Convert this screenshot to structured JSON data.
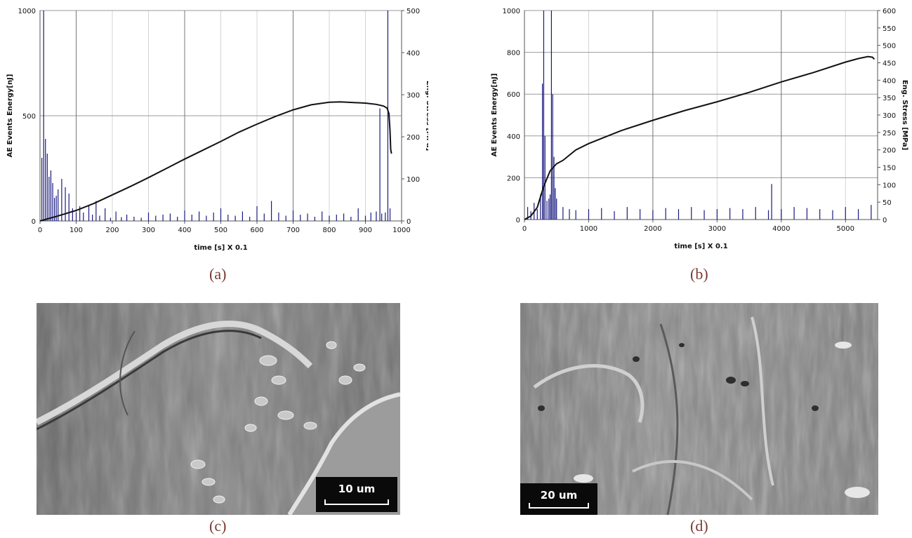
{
  "chart_data": [
    {
      "panel": "(a)",
      "type": "line",
      "xlabel": "time [s] X 0.1",
      "ylabel": "AE Events Energy[nJ]",
      "y2label": "Eng. Stress [MPa]",
      "xlim": [
        0,
        1000
      ],
      "ylim": [
        0,
        1000
      ],
      "y2lim": [
        0,
        500
      ],
      "xticks": [
        0,
        100,
        200,
        300,
        400,
        500,
        600,
        700,
        800,
        900,
        1000
      ],
      "yticks": [
        0,
        500,
        1000
      ],
      "y2ticks": [
        0,
        100,
        200,
        300,
        400,
        500
      ],
      "major_gridlines_x": [
        100,
        400,
        700
      ],
      "grid": true,
      "series": [
        {
          "axis": "right",
          "color": "#111111",
          "x": [
            0,
            50,
            100,
            150,
            200,
            250,
            300,
            350,
            400,
            450,
            500,
            550,
            600,
            650,
            700,
            750,
            800,
            830,
            850,
            900,
            930,
            950,
            960,
            965,
            968,
            970,
            972
          ],
          "y": [
            0,
            12,
            25,
            42,
            62,
            82,
            103,
            125,
            147,
            168,
            189,
            211,
            230,
            248,
            264,
            276,
            282,
            283,
            282,
            280,
            277,
            273,
            268,
            255,
            215,
            170,
            160
          ]
        },
        {
          "axis": "left",
          "color": "#1a1a80",
          "type": "bar",
          "x": [
            5,
            10,
            15,
            20,
            25,
            30,
            35,
            40,
            45,
            50,
            60,
            70,
            80,
            90,
            100,
            110,
            120,
            135,
            145,
            155,
            165,
            180,
            195,
            210,
            225,
            240,
            260,
            280,
            300,
            320,
            340,
            360,
            380,
            400,
            420,
            440,
            460,
            480,
            500,
            520,
            540,
            560,
            580,
            600,
            620,
            640,
            660,
            680,
            700,
            720,
            740,
            760,
            780,
            800,
            820,
            840,
            860,
            880,
            900,
            915,
            930,
            940,
            945,
            955,
            962,
            968
          ],
          "y": [
            300,
            1000,
            390,
            320,
            210,
            240,
            180,
            110,
            120,
            150,
            200,
            160,
            130,
            60,
            40,
            70,
            40,
            75,
            30,
            95,
            25,
            60,
            15,
            45,
            18,
            30,
            20,
            15,
            40,
            25,
            30,
            35,
            20,
            50,
            30,
            45,
            25,
            40,
            60,
            30,
            25,
            45,
            20,
            70,
            35,
            95,
            40,
            25,
            50,
            30,
            35,
            20,
            45,
            25,
            30,
            35,
            20,
            60,
            25,
            40,
            45,
            535,
            35,
            40,
            1000,
            60
          ]
        }
      ]
    },
    {
      "panel": "(b)",
      "type": "line",
      "xlabel": "time [s] X 0.1",
      "ylabel": "AE Events Energy[nJ]",
      "y2label": "Eng. Stress [MPa]",
      "xlim": [
        0,
        5500
      ],
      "ylim": [
        0,
        1000
      ],
      "y2lim": [
        0,
        600
      ],
      "xticks": [
        0,
        1000,
        2000,
        3000,
        4000,
        5000
      ],
      "yticks": [
        0,
        200,
        400,
        600,
        800,
        1000
      ],
      "y2ticks": [
        0,
        50,
        100,
        150,
        200,
        250,
        300,
        350,
        400,
        450,
        500,
        550,
        600
      ],
      "major_gridlines_x": [
        2000,
        4000
      ],
      "grid": true,
      "series": [
        {
          "axis": "right",
          "color": "#111111",
          "x": [
            0,
            100,
            200,
            300,
            400,
            500,
            600,
            800,
            1000,
            1500,
            2000,
            2500,
            3000,
            3500,
            4000,
            4500,
            5000,
            5200,
            5350,
            5420,
            5450
          ],
          "y": [
            0,
            10,
            35,
            95,
            140,
            160,
            170,
            200,
            218,
            255,
            285,
            313,
            338,
            365,
            395,
            422,
            452,
            462,
            468,
            466,
            460
          ]
        },
        {
          "axis": "left",
          "color": "#1a1a80",
          "type": "bar",
          "x": [
            50,
            100,
            150,
            200,
            250,
            280,
            300,
            320,
            350,
            380,
            400,
            420,
            440,
            460,
            480,
            500,
            600,
            700,
            800,
            1000,
            1200,
            1400,
            1600,
            1800,
            2000,
            2200,
            2400,
            2600,
            2800,
            3000,
            3200,
            3400,
            3600,
            3800,
            3850,
            4000,
            4200,
            4400,
            4600,
            4800,
            5000,
            5200,
            5400
          ],
          "y": [
            60,
            40,
            80,
            50,
            120,
            650,
            1000,
            400,
            90,
            100,
            120,
            1000,
            600,
            300,
            150,
            100,
            60,
            50,
            45,
            50,
            55,
            40,
            60,
            50,
            45,
            55,
            50,
            60,
            45,
            50,
            55,
            50,
            60,
            45,
            170,
            50,
            60,
            55,
            50,
            45,
            60,
            50,
            70
          ]
        }
      ]
    }
  ],
  "panels": {
    "a_label": "(a)",
    "b_label": "(b)",
    "c_label": "(c)",
    "d_label": "(d)",
    "c_scale": "10 um",
    "d_scale": "20 um"
  }
}
